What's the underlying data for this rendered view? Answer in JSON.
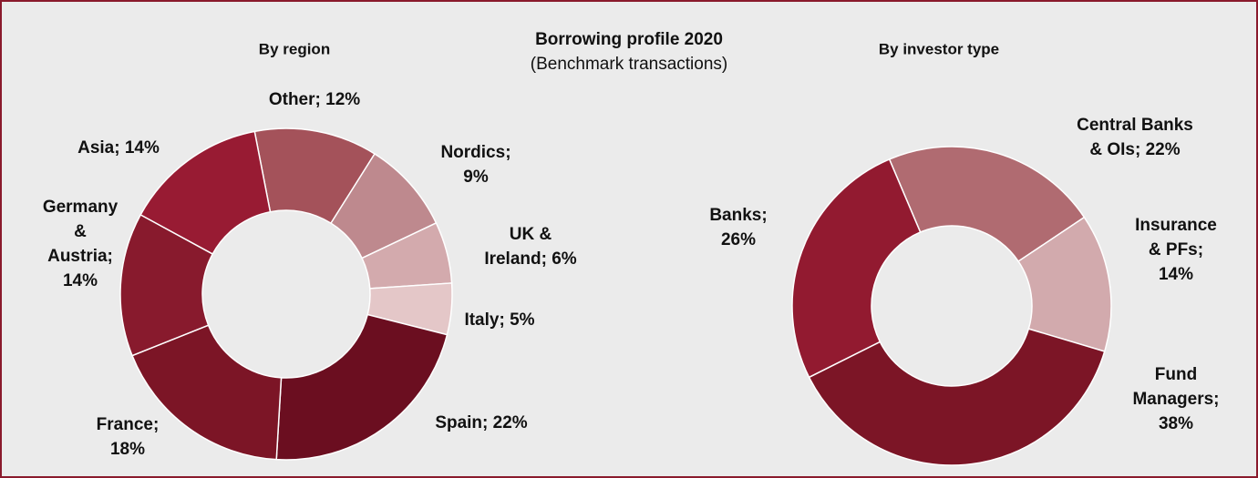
{
  "title": "Borrowing profile 2020",
  "subtitle": "(Benchmark transactions)",
  "chart_data": [
    {
      "type": "donut",
      "title": "By region",
      "start_angle": -11,
      "labels": [
        [
          "Other; 12%"
        ],
        [
          "Nordics;",
          "9%"
        ],
        [
          "UK &",
          "Ireland; 6%"
        ],
        [
          "Italy; 5%"
        ],
        [
          "Spain; 22%"
        ],
        [
          "France;",
          "18%"
        ],
        [
          "Germany",
          "&",
          "Austria;",
          "14%"
        ],
        [
          "Asia; 14%"
        ]
      ],
      "values": [
        12,
        9,
        6,
        5,
        22,
        18,
        14,
        14
      ],
      "colors": [
        "#a4525a",
        "#be898e",
        "#d3aaad",
        "#e4c7c8",
        "#6b0e20",
        "#7c1526",
        "#881a2d",
        "#981b33"
      ]
    },
    {
      "type": "donut",
      "title": "By investor type",
      "start_angle": -23,
      "labels": [
        [
          "Central Banks",
          "& OIs; 22%"
        ],
        [
          "Insurance",
          "& PFs;",
          "14%"
        ],
        [
          "Fund",
          "Managers;",
          "38%"
        ],
        [
          "Banks;",
          "26%"
        ]
      ],
      "values": [
        22,
        14,
        38,
        26
      ],
      "colors": [
        "#b06b71",
        "#d2aaad",
        "#7c1526",
        "#921a30"
      ]
    }
  ]
}
